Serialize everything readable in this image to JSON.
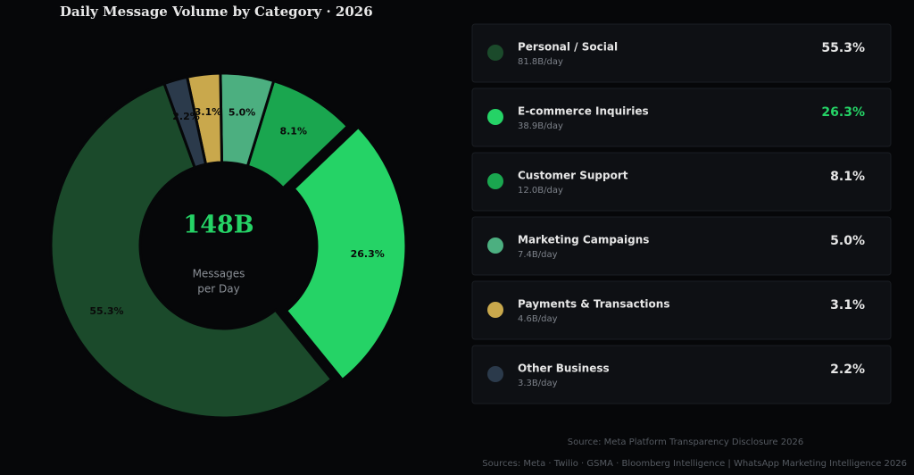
{
  "chart_data": {
    "type": "donut",
    "title": "Daily Message Volume by Category  ·  2026",
    "center_value": "148B",
    "center_label": [
      "Messages",
      "per Day"
    ],
    "categories": [
      "Personal / Social",
      "E-commerce Inquiries",
      "Customer Support",
      "Marketing Campaigns",
      "Payments & Transactions",
      "Other Business"
    ],
    "values": [
      55.3,
      26.3,
      8.1,
      5.0,
      3.1,
      2.2
    ],
    "value_labels": [
      "55.3%",
      "26.3%",
      "8.1%",
      "5.0%",
      "3.1%",
      "2.2%"
    ],
    "details": [
      "81.8B/day",
      "38.9B/day",
      "12.0B/day",
      "7.4B/day",
      "4.6B/day",
      "3.3B/day"
    ],
    "colors": [
      "#1b4a2b",
      "#25d366",
      "#1aa64f",
      "#4caf80",
      "#c9a84c",
      "#2b3a4b"
    ],
    "highlight_index": 1,
    "notes": [
      "Source: Meta Platform Transparency Disclosure 2026",
      "Sources: Meta · Twilio · GSMA · Bloomberg Intelligence  |  WhatsApp Marketing Intelligence 2026"
    ]
  }
}
